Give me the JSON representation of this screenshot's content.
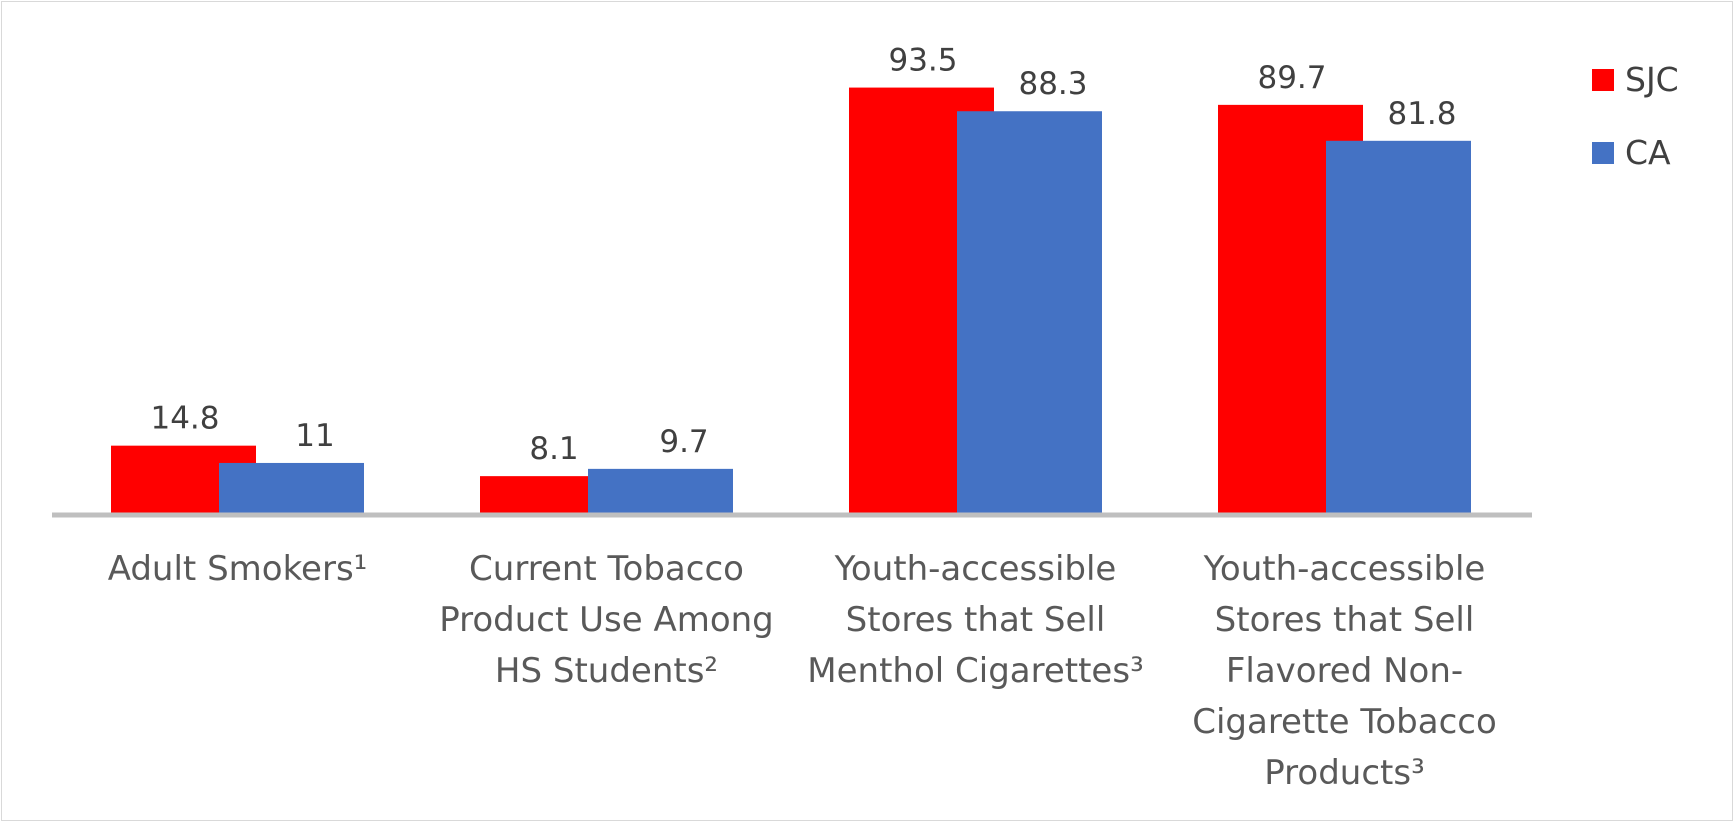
{
  "chart_data": {
    "type": "bar",
    "categories": [
      [
        "Adult Smokers¹"
      ],
      [
        "Current Tobacco",
        "Product Use Among",
        "HS Students²"
      ],
      [
        "Youth-accessible",
        "Stores that Sell",
        "Menthol Cigarettes³"
      ],
      [
        "Youth-accessible",
        "Stores that Sell",
        "Flavored Non-",
        "Cigarette Tobacco",
        "Products³"
      ]
    ],
    "series": [
      {
        "name": "SJC",
        "color": "#ff0000",
        "values": [
          14.8,
          8.1,
          93.5,
          89.7
        ]
      },
      {
        "name": "CA",
        "color": "#4472c4",
        "values": [
          11,
          9.7,
          88.3,
          81.8
        ]
      }
    ],
    "value_labels": [
      [
        "14.8",
        "8.1",
        "93.5",
        "89.7"
      ],
      [
        "11",
        "9.7",
        "88.3",
        "81.8"
      ]
    ],
    "ylim": [
      0,
      100
    ],
    "grid": false,
    "legend_position": "top-right",
    "axis_color": "#bfbfbf"
  }
}
